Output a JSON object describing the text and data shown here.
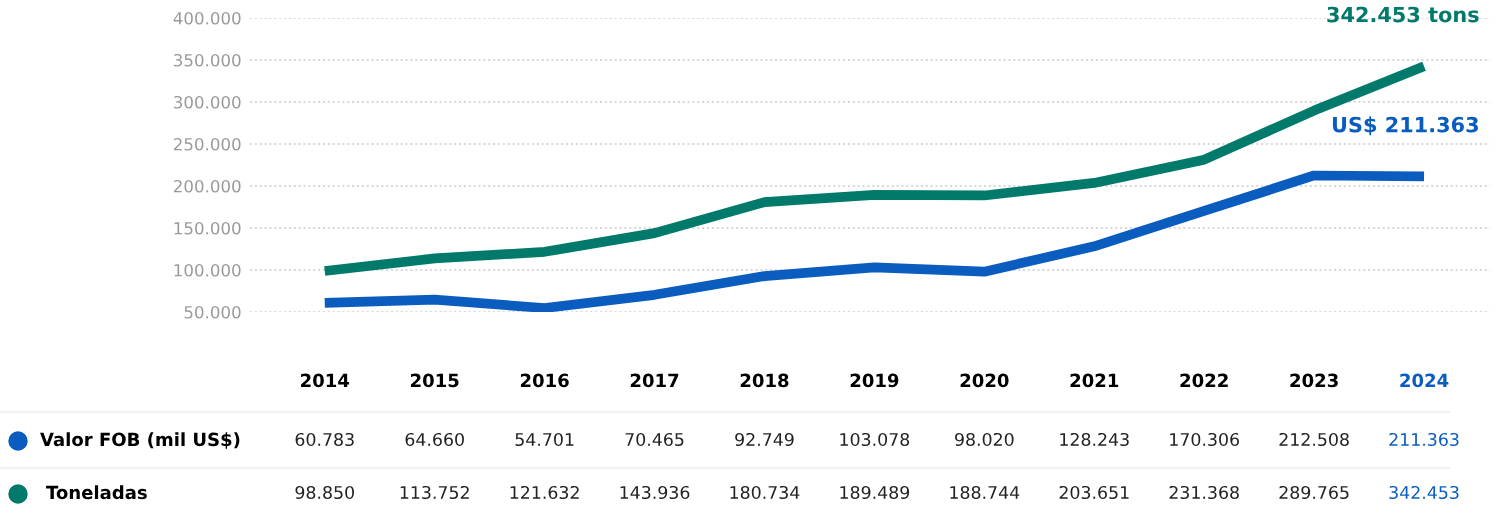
{
  "chart_data": {
    "type": "line",
    "categories": [
      "2014",
      "2015",
      "2016",
      "2017",
      "2018",
      "2019",
      "2020",
      "2021",
      "2022",
      "2023",
      "2024"
    ],
    "series": [
      {
        "name": "Valor FOB (mil US$)",
        "color": "#0a5cbf",
        "values": [
          60783,
          64660,
          54701,
          70465,
          92749,
          103078,
          98020,
          128243,
          170306,
          212508,
          211363
        ],
        "value_labels": [
          "60.783",
          "64.660",
          "54.701",
          "70.465",
          "92.749",
          "103.078",
          "98.020",
          "128.243",
          "170.306",
          "212.508",
          "211.363"
        ]
      },
      {
        "name": "Toneladas",
        "color": "#017a6b",
        "values": [
          98850,
          113752,
          121632,
          143936,
          180734,
          189489,
          188744,
          203651,
          231368,
          289765,
          342453
        ],
        "value_labels": [
          "98.850",
          "113.752",
          "121.632",
          "143.936",
          "180.734",
          "189.489",
          "188.744",
          "203.651",
          "231.368",
          "289.765",
          "342.453"
        ]
      }
    ],
    "ylim": [
      50000,
      400000
    ],
    "legend": "bottom left",
    "yticks": [
      {
        "value": 50000,
        "label": "50.000"
      },
      {
        "value": 100000,
        "label": "100.000"
      },
      {
        "value": 150000,
        "label": "150.000"
      },
      {
        "value": 200000,
        "label": "200.000"
      },
      {
        "value": 250000,
        "label": "250.000"
      },
      {
        "value": 300000,
        "label": "300.000"
      },
      {
        "value": 350000,
        "label": "350.000"
      },
      {
        "value": 400000,
        "label": "400.000"
      }
    ],
    "grid": "y",
    "tick_labels": "y",
    "data_labels": true,
    "annotations": [
      {
        "text": "342.453 tons",
        "x": "2024",
        "y": 342453
      },
      {
        "text": "US$ 211.363",
        "x": "2024",
        "y": 211363
      }
    ]
  }
}
